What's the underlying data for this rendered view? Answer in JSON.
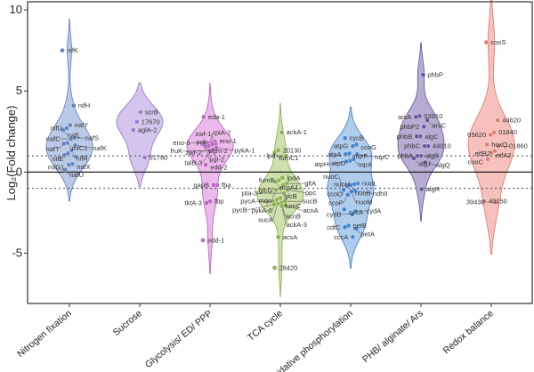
{
  "chart_data": {
    "type": "violin",
    "title": "",
    "xlabel": "",
    "ylabel": "Log₂(Fold change)",
    "ylim": [
      -8.1,
      10.5
    ],
    "yticks": [
      -5,
      0,
      5,
      10
    ],
    "reference_lines": {
      "solid": [
        0
      ],
      "dotted": [
        1,
        -1
      ]
    },
    "grid": false,
    "legend": "none",
    "categories": [
      "Nitrogen fixation",
      "Sucrose",
      "Glycolysis/ ED/ PPP",
      "TCA cycle",
      "Oxidative phosphorylation",
      "PHB/ alginate/ Ars",
      "Redox balance"
    ],
    "series": [
      {
        "category": "Nitrogen fixation",
        "fill": "#aebfe0",
        "stroke": "#5a7dbd",
        "points": [
          {
            "label": "nifK",
            "y": 7.5
          },
          {
            "label": "nifH",
            "y": 4.1
          },
          {
            "label": "nafY",
            "y": 2.9
          },
          {
            "label": "nifU",
            "y": 2.7
          },
          {
            "label": "nafL",
            "y": 2.6
          },
          {
            "label": "nafS",
            "y": 2.1
          },
          {
            "label": "nafC",
            "y": 2.05
          },
          {
            "label": "mfC1",
            "y": 1.8
          },
          {
            "label": "nafT",
            "y": 1.75
          },
          {
            "label": "nafK",
            "y": 1.65
          },
          {
            "label": "nifR",
            "y": 1.35
          },
          {
            "label": "nifE",
            "y": 1.15
          },
          {
            "label": "",
            "y": 1.05
          },
          {
            "label": "",
            "y": 0.95
          },
          {
            "label": "nafX",
            "y": 0.5
          },
          {
            "label": "mfG1",
            "y": 0.45
          },
          {
            "label": "nafU",
            "y": 0.15
          }
        ]
      },
      {
        "category": "Sucrose",
        "fill": "#cbbbe9",
        "stroke": "#8f76c9",
        "points": [
          {
            "label": "scrB",
            "y": 3.7
          },
          {
            "label": "17670",
            "y": 3.1
          },
          {
            "label": "aglA-2",
            "y": 2.6
          },
          {
            "label": "51780",
            "y": 0.9
          }
        ]
      },
      {
        "category": "Glycolysis/ ED/ PPP",
        "fill": "#e8aee8",
        "stroke": "#b85cc0",
        "points": [
          {
            "label": "eda-1",
            "y": 3.4
          },
          {
            "label": "eno-1",
            "y": 1.9
          },
          {
            "label": "pgk",
            "y": 1.85
          },
          {
            "label": "eno-6",
            "y": 1.8
          },
          {
            "label": "pgm-2",
            "y": 1.8
          },
          {
            "label": "zwf-1",
            "y": 1.7
          },
          {
            "label": "zwf-2",
            "y": 1.7
          },
          {
            "label": "rpiA-2",
            "y": 1.6
          },
          {
            "label": "pgl-2",
            "y": 1.6
          },
          {
            "label": "pykA-1",
            "y": 1.5
          },
          {
            "label": "talB-3",
            "y": 1.4
          },
          {
            "label": "fruK",
            "y": 1.3
          },
          {
            "label": "edd-2",
            "y": 0.45
          },
          {
            "label": "fba",
            "y": -0.8
          },
          {
            "label": "gapB",
            "y": -0.8
          },
          {
            "label": "fbp",
            "y": -1.8
          },
          {
            "label": "tktA-3",
            "y": -1.9
          },
          {
            "label": "edd-1",
            "y": -4.2
          }
        ]
      },
      {
        "category": "TCA cycle",
        "fill": "#c5db9c",
        "stroke": "#86ad4a",
        "points": [
          {
            "label": "ackA-1",
            "y": 2.45
          },
          {
            "label": "20130",
            "y": 1.35
          },
          {
            "label": "fumC1",
            "y": 1.2
          },
          {
            "label": "lpd",
            "y": 1.0
          },
          {
            "label": "lpdA",
            "y": -0.35
          },
          {
            "label": "fumB",
            "y": -0.5
          },
          {
            "label": "acsA1",
            "y": -0.6
          },
          {
            "label": "gltA",
            "y": -0.7
          },
          {
            "label": "glcG",
            "y": -0.8
          },
          {
            "label": "glcB",
            "y": -1.0
          },
          {
            "label": "mqo",
            "y": -1.1
          },
          {
            "label": "ppc",
            "y": -1.1
          },
          {
            "label": "pta-3",
            "y": -1.3
          },
          {
            "label": "fumC",
            "y": -1.6
          },
          {
            "label": "pykA-6",
            "y": -1.7
          },
          {
            "label": "pycA",
            "y": -1.8
          },
          {
            "label": "sucB",
            "y": -1.8
          },
          {
            "label": "acnB",
            "y": -1.9
          },
          {
            "label": "sucA",
            "y": -1.95
          },
          {
            "label": "pycB",
            "y": -2.0
          },
          {
            "label": "acnA",
            "y": -2.05
          },
          {
            "label": "ackA-3",
            "y": -2.1
          },
          {
            "label": "acsA",
            "y": -4.0
          },
          {
            "label": "28420",
            "y": -5.9
          }
        ]
      },
      {
        "category": "Oxidative phosphorylation",
        "fill": "#a2c3ea",
        "stroke": "#3b7ccc",
        "points": [
          {
            "label": "cycB",
            "y": 2.1
          },
          {
            "label": "ccoG",
            "y": 1.7
          },
          {
            "label": "atpG",
            "y": 1.6
          },
          {
            "label": "nqrF",
            "y": 1.15
          },
          {
            "label": "atpA",
            "y": 1.1
          },
          {
            "label": "nqrC",
            "y": 1.1
          },
          {
            "label": "nqrA",
            "y": 0.8
          },
          {
            "label": "atpD",
            "y": 0.7
          },
          {
            "label": "atpH",
            "y": 0.65
          },
          {
            "label": "nuoL",
            "y": -0.7
          },
          {
            "label": "nuoH",
            "y": -0.75
          },
          {
            "label": "nuoB",
            "y": -0.8
          },
          {
            "label": "ccoO",
            "y": -0.85
          },
          {
            "label": "nuoC",
            "y": -1.1
          },
          {
            "label": "ndhII",
            "y": -1.15
          },
          {
            "label": "nuoM",
            "y": -1.2
          },
          {
            "label": "ccoP",
            "y": -1.4
          },
          {
            "label": "cycA",
            "y": -2.3
          },
          {
            "label": "cydA",
            "y": -2.4
          },
          {
            "label": "cydB",
            "y": -2.6
          },
          {
            "label": "petB",
            "y": -3.3
          },
          {
            "label": "cdtC",
            "y": -3.4
          },
          {
            "label": "petA",
            "y": -3.5
          },
          {
            "label": "cccA",
            "y": -4.0
          }
        ]
      },
      {
        "category": "PHB/ alginate/ Ars",
        "fill": "#aa9fcb",
        "stroke": "#5e4f9a",
        "points": [
          {
            "label": "phbP",
            "y": 6.0
          },
          {
            "label": "03910",
            "y": 3.45
          },
          {
            "label": "arsA",
            "y": 3.4
          },
          {
            "label": "arsC",
            "y": 3.2
          },
          {
            "label": "phbP2",
            "y": 2.8
          },
          {
            "label": "algC",
            "y": 2.2
          },
          {
            "label": "phbB",
            "y": 2.2
          },
          {
            "label": "44010",
            "y": 1.6
          },
          {
            "label": "phbC",
            "y": 1.6
          },
          {
            "label": "algB",
            "y": 1.0
          },
          {
            "label": "phbA",
            "y": 1.0
          },
          {
            "label": "algJ",
            "y": 0.85
          },
          {
            "label": "algQ",
            "y": 0.6
          },
          {
            "label": "algR",
            "y": -1.05
          }
        ]
      },
      {
        "category": "Redox balance",
        "fill": "#f4b6b1",
        "stroke": "#df746c",
        "points": [
          {
            "label": "cooS",
            "y": 8.0
          },
          {
            "label": "44620",
            "y": 3.2
          },
          {
            "label": "01840",
            "y": 2.45
          },
          {
            "label": "05620",
            "y": 2.3
          },
          {
            "label": "hoxQ",
            "y": 1.7
          },
          {
            "label": "01860",
            "y": 1.6
          },
          {
            "label": "etfB2",
            "y": 1.3
          },
          {
            "label": "etfA2",
            "y": 1.2
          },
          {
            "label": "cooC",
            "y": 0.8
          },
          {
            "label": "40150",
            "y": -1.8
          },
          {
            "label": "39430",
            "y": -1.85
          }
        ]
      }
    ]
  }
}
